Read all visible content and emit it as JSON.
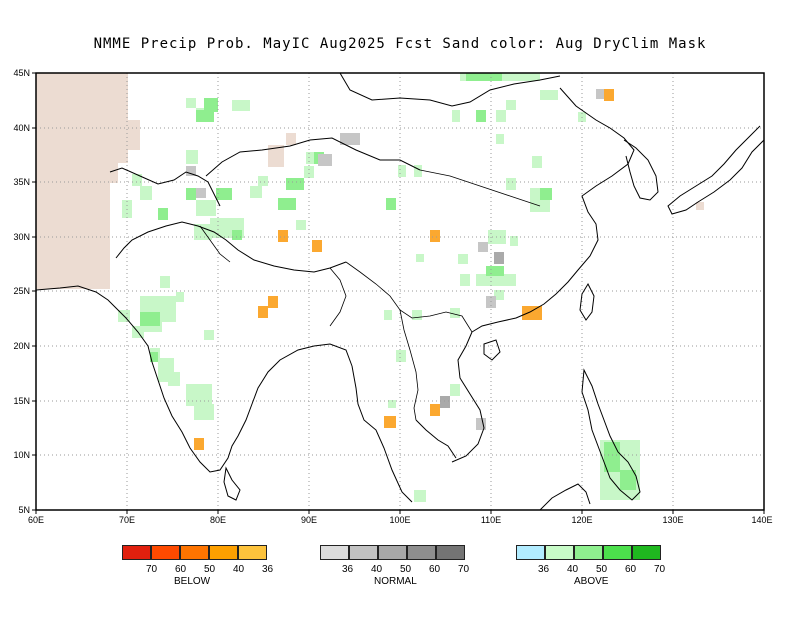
{
  "title": "NMME Precip Prob. MayIC  Aug2025 Fcst  Sand color: Aug DryClim Mask",
  "map": {
    "lon_range": [
      60,
      140
    ],
    "lat_range": [
      5,
      45
    ],
    "lon_ticks": [
      "60E",
      "70E",
      "80E",
      "90E",
      "100E",
      "110E",
      "120E",
      "130E",
      "140E"
    ],
    "lat_ticks": [
      "5N",
      "10N",
      "15N",
      "20N",
      "25N",
      "30N",
      "35N",
      "40N",
      "45N"
    ],
    "grid": "dotted",
    "colors": {
      "sand": "#ecdcd2",
      "above_36": "#c8f7c8",
      "above_40": "#8fee8f",
      "below_40": "#fba830",
      "normal_36": "#c6c6c6",
      "normal_40": "#aaaaaa"
    }
  },
  "legend": {
    "below": {
      "caption": "BELOW",
      "colors": [
        "#e1200e",
        "#fe4a00",
        "#fe7400",
        "#fda000",
        "#fdc33c"
      ],
      "labels": [
        "70",
        "60",
        "50",
        "40",
        "36"
      ]
    },
    "normal": {
      "caption": "NORMAL",
      "colors": [
        "#dcdcdc",
        "#c2c2c2",
        "#a8a8a8",
        "#8e8e8e",
        "#747474"
      ],
      "labels": [
        "36",
        "40",
        "50",
        "60",
        "70"
      ]
    },
    "above": {
      "caption": "ABOVE",
      "colors": [
        "#b2ecff",
        "#c8fbc8",
        "#8ff08f",
        "#4ce04c",
        "#1fb81f"
      ],
      "labels": [
        "36",
        "40",
        "50",
        "60",
        "70"
      ]
    }
  }
}
